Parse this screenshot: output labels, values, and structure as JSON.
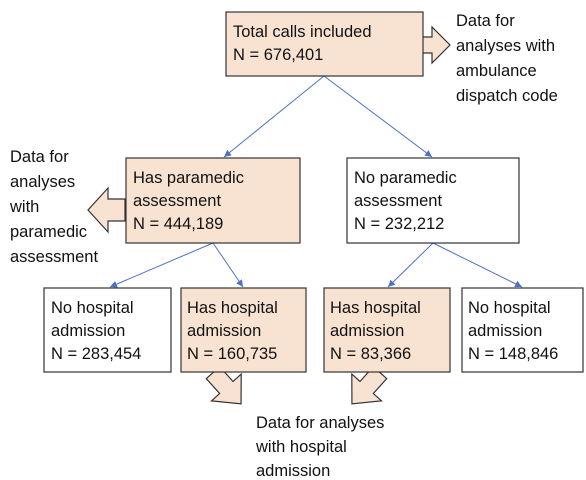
{
  "nodes": [
    {
      "lines": [
        "Total calls included",
        "N = 676,401"
      ]
    },
    {
      "lines": [
        "Has paramedic",
        "assessment",
        "N = 444,189"
      ]
    },
    {
      "lines": [
        "No paramedic",
        "assessment",
        "N = 232,212"
      ]
    },
    {
      "lines": [
        "No hospital",
        "admission",
        "N = 283,454"
      ]
    },
    {
      "lines": [
        "Has hospital",
        "admission",
        "N = 160,735"
      ]
    },
    {
      "lines": [
        "Has hospital",
        "admission",
        "N = 83,366"
      ]
    },
    {
      "lines": [
        "No hospital",
        "admission",
        "N = 148,846"
      ]
    }
  ],
  "outputs": [
    {
      "lines": [
        "Data for",
        "analyses with",
        "ambulance",
        "dispatch code"
      ]
    },
    {
      "lines": [
        "Data for",
        "analyses",
        "with",
        "paramedic",
        "assessment"
      ]
    },
    {
      "lines": [
        "Data for analyses",
        "with hospital",
        "admission"
      ]
    }
  ]
}
